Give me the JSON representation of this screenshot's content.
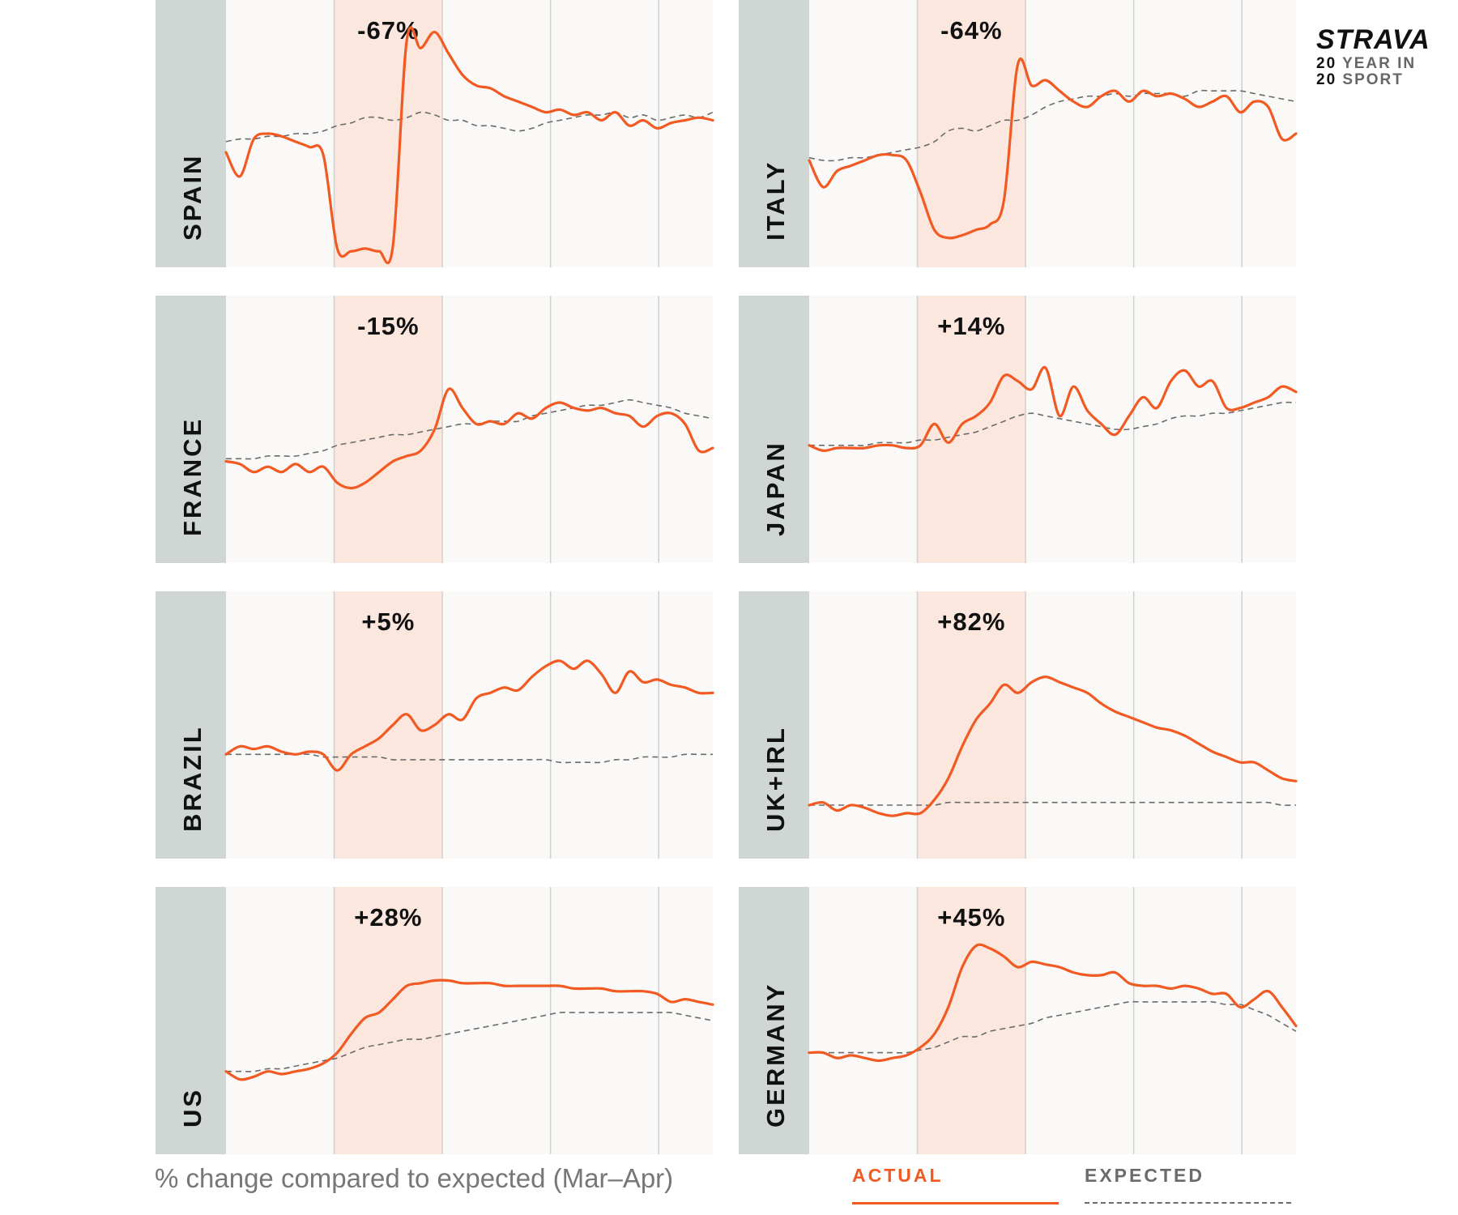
{
  "caption": "% change compared to expected (Mar–Apr)",
  "legend": {
    "actual": "ACTUAL",
    "expected": "EXPECTED",
    "actual_color": "#f15a22",
    "expected_color": "#6b6b6b"
  },
  "logo": {
    "brand": "STRAVA",
    "line1_num": "20",
    "line1_text": "YEAR IN",
    "line2_num": "20",
    "line2_text": "SPORT"
  },
  "colors": {
    "actual": "#f15a22",
    "expected": "#6b6b6b",
    "shade": "#fbe7dd",
    "label_strip": "#d0d6d4",
    "panel_bg": "#faf9f7"
  },
  "chart_data": [
    {
      "type": "line",
      "country": "SPAIN",
      "change": "-67%",
      "ylim": [
        0,
        100
      ],
      "series": [
        {
          "name": "ACTUAL",
          "values": [
            43,
            34,
            48,
            50,
            49,
            47,
            45,
            42,
            7,
            6,
            7,
            6,
            8,
            85,
            82,
            88,
            80,
            72,
            68,
            67,
            64,
            62,
            60,
            58,
            59,
            57,
            58,
            55,
            58,
            53,
            55,
            52,
            54,
            55,
            56,
            55
          ]
        },
        {
          "name": "EXPECTED",
          "values": [
            47,
            48,
            48,
            49,
            49,
            50,
            50,
            51,
            53,
            54,
            56,
            56,
            55,
            56,
            58,
            57,
            55,
            55,
            53,
            53,
            52,
            51,
            52,
            54,
            55,
            56,
            57,
            57,
            58,
            56,
            57,
            55,
            56,
            57,
            56,
            58
          ]
        }
      ]
    },
    {
      "type": "line",
      "country": "ITALY",
      "change": "-64%",
      "ylim": [
        0,
        100
      ],
      "series": [
        {
          "name": "ACTUAL",
          "values": [
            40,
            30,
            36,
            38,
            40,
            42,
            42,
            40,
            28,
            14,
            11,
            12,
            14,
            16,
            25,
            76,
            68,
            70,
            66,
            62,
            60,
            64,
            66,
            62,
            66,
            64,
            65,
            63,
            60,
            62,
            64,
            58,
            62,
            60,
            48,
            50
          ]
        },
        {
          "name": "EXPECTED",
          "values": [
            41,
            40,
            40,
            41,
            41,
            42,
            43,
            44,
            45,
            47,
            51,
            52,
            51,
            53,
            55,
            55,
            57,
            60,
            62,
            63,
            64,
            64,
            65,
            64,
            65,
            65,
            65,
            64,
            66,
            66,
            66,
            66,
            65,
            64,
            63,
            62
          ]
        }
      ]
    },
    {
      "type": "line",
      "country": "FRANCE",
      "change": "-15%",
      "ylim": [
        0,
        100
      ],
      "series": [
        {
          "name": "ACTUAL",
          "values": [
            38,
            37,
            34,
            36,
            34,
            37,
            34,
            36,
            30,
            28,
            30,
            34,
            38,
            40,
            42,
            50,
            65,
            58,
            52,
            53,
            52,
            56,
            54,
            58,
            60,
            58,
            57,
            58,
            56,
            55,
            51,
            55,
            56,
            52,
            42,
            43
          ]
        },
        {
          "name": "EXPECTED",
          "values": [
            39,
            39,
            39,
            40,
            40,
            40,
            41,
            42,
            44,
            45,
            46,
            47,
            48,
            48,
            49,
            50,
            51,
            52,
            52,
            53,
            53,
            53,
            55,
            56,
            57,
            58,
            59,
            59,
            60,
            61,
            60,
            59,
            58,
            56,
            55,
            54
          ]
        }
      ]
    },
    {
      "type": "line",
      "country": "JAPAN",
      "change": "+14%",
      "ylim": [
        0,
        100
      ],
      "series": [
        {
          "name": "ACTUAL",
          "values": [
            44,
            42,
            43,
            43,
            43,
            44,
            44,
            43,
            44,
            52,
            45,
            52,
            55,
            60,
            70,
            68,
            65,
            73,
            55,
            66,
            57,
            52,
            48,
            55,
            62,
            58,
            68,
            72,
            66,
            68,
            58,
            58,
            60,
            62,
            66,
            64
          ]
        },
        {
          "name": "EXPECTED",
          "values": [
            44,
            44,
            44,
            44,
            44,
            45,
            45,
            45,
            46,
            46,
            47,
            48,
            49,
            51,
            53,
            55,
            56,
            55,
            54,
            53,
            52,
            51,
            50,
            50,
            51,
            52,
            54,
            55,
            55,
            56,
            56,
            57,
            58,
            59,
            60,
            60
          ]
        }
      ]
    },
    {
      "type": "line",
      "country": "BRAZIL",
      "change": "+5%",
      "ylim": [
        0,
        100
      ],
      "series": [
        {
          "name": "ACTUAL",
          "values": [
            39,
            42,
            41,
            42,
            40,
            39,
            40,
            39,
            33,
            39,
            42,
            45,
            50,
            54,
            48,
            50,
            54,
            52,
            60,
            62,
            64,
            63,
            68,
            72,
            74,
            71,
            74,
            69,
            62,
            70,
            66,
            67,
            65,
            64,
            62,
            62
          ]
        },
        {
          "name": "EXPECTED",
          "values": [
            39,
            39,
            39,
            39,
            39,
            39,
            39,
            38,
            38,
            38,
            38,
            38,
            37,
            37,
            37,
            37,
            37,
            37,
            37,
            37,
            37,
            37,
            37,
            37,
            36,
            36,
            36,
            36,
            37,
            37,
            38,
            38,
            38,
            39,
            39,
            39
          ]
        }
      ]
    },
    {
      "type": "line",
      "country": "UK+IRL",
      "change": "+82%",
      "ylim": [
        0,
        100
      ],
      "series": [
        {
          "name": "ACTUAL",
          "values": [
            20,
            21,
            18,
            20,
            19,
            17,
            16,
            17,
            17,
            22,
            30,
            42,
            52,
            58,
            65,
            62,
            66,
            68,
            66,
            64,
            62,
            58,
            55,
            53,
            51,
            49,
            48,
            46,
            43,
            40,
            38,
            36,
            36,
            33,
            30,
            29
          ]
        },
        {
          "name": "EXPECTED",
          "values": [
            20,
            20,
            20,
            20,
            20,
            20,
            20,
            20,
            20,
            20,
            21,
            21,
            21,
            21,
            21,
            21,
            21,
            21,
            21,
            21,
            21,
            21,
            21,
            21,
            21,
            21,
            21,
            21,
            21,
            21,
            21,
            21,
            21,
            21,
            20,
            20
          ]
        }
      ]
    },
    {
      "type": "line",
      "country": "US",
      "change": "+28%",
      "ylim": [
        0,
        100
      ],
      "series": [
        {
          "name": "ACTUAL",
          "values": [
            31,
            28,
            29,
            31,
            30,
            31,
            32,
            34,
            38,
            45,
            51,
            53,
            58,
            63,
            64,
            65,
            65,
            64,
            64,
            64,
            63,
            63,
            63,
            63,
            63,
            62,
            62,
            62,
            61,
            61,
            61,
            60,
            57,
            58,
            57,
            56
          ]
        },
        {
          "name": "EXPECTED",
          "values": [
            31,
            31,
            31,
            32,
            32,
            33,
            34,
            35,
            36,
            38,
            40,
            41,
            42,
            43,
            43,
            44,
            45,
            46,
            47,
            48,
            49,
            50,
            51,
            52,
            53,
            53,
            53,
            53,
            53,
            53,
            53,
            53,
            53,
            52,
            51,
            50
          ]
        }
      ]
    },
    {
      "type": "line",
      "country": "GERMANY",
      "change": "+45%",
      "ylim": [
        0,
        100
      ],
      "series": [
        {
          "name": "ACTUAL",
          "values": [
            38,
            38,
            36,
            37,
            36,
            35,
            36,
            37,
            40,
            45,
            55,
            70,
            78,
            77,
            74,
            70,
            72,
            71,
            70,
            68,
            67,
            67,
            68,
            64,
            63,
            63,
            62,
            63,
            62,
            60,
            60,
            55,
            58,
            61,
            55,
            48
          ]
        },
        {
          "name": "EXPECTED",
          "values": [
            38,
            38,
            38,
            38,
            38,
            38,
            38,
            38,
            39,
            40,
            42,
            44,
            44,
            46,
            47,
            48,
            49,
            51,
            52,
            53,
            54,
            55,
            56,
            57,
            57,
            57,
            57,
            57,
            57,
            57,
            56,
            56,
            54,
            52,
            49,
            46
          ]
        }
      ]
    }
  ]
}
